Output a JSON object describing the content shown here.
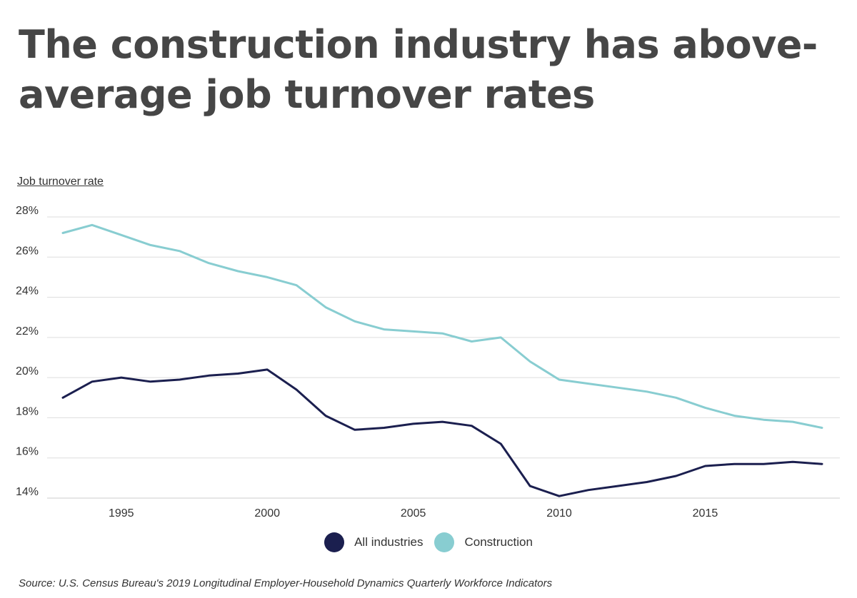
{
  "title": "The construction industry has above-average job turnover rates",
  "source": "Source:  U.S. Census Bureau's 2019 Longitudinal Employer-Household Dynamics Quarterly Workforce Indicators",
  "colors": {
    "all_industries": "#1b1f4f",
    "construction": "#88cdd1",
    "grid": "#dddddd"
  },
  "chart_data": {
    "type": "line",
    "ylabel": "Job turnover rate",
    "xlabel": "",
    "xlim": [
      1993,
      2019
    ],
    "ylim": [
      14,
      28
    ],
    "x_ticks": [
      1995,
      2000,
      2005,
      2010,
      2015
    ],
    "y_ticks": [
      {
        "value": 14,
        "label": "14%"
      },
      {
        "value": 16,
        "label": "16%"
      },
      {
        "value": 18,
        "label": "18%"
      },
      {
        "value": 20,
        "label": "20%"
      },
      {
        "value": 22,
        "label": "22%"
      },
      {
        "value": 24,
        "label": "24%"
      },
      {
        "value": 26,
        "label": "26%"
      },
      {
        "value": 28,
        "label": "28%"
      }
    ],
    "grid": true,
    "legend_position": "bottom-center",
    "x": [
      1993,
      1994,
      1995,
      1996,
      1997,
      1998,
      1999,
      2000,
      2001,
      2002,
      2003,
      2004,
      2005,
      2006,
      2007,
      2008,
      2009,
      2010,
      2011,
      2012,
      2013,
      2014,
      2015,
      2016,
      2017,
      2018,
      2019
    ],
    "series": [
      {
        "name": "All industries",
        "color": "#1b1f4f",
        "values": [
          19.0,
          19.8,
          20.0,
          19.8,
          19.9,
          20.1,
          20.2,
          20.4,
          19.4,
          18.1,
          17.4,
          17.5,
          17.7,
          17.8,
          17.6,
          16.7,
          14.6,
          14.1,
          14.4,
          14.6,
          14.8,
          15.1,
          15.6,
          15.7,
          15.7,
          15.8,
          15.7
        ]
      },
      {
        "name": "Construction",
        "color": "#88cdd1",
        "values": [
          27.2,
          27.6,
          27.1,
          26.6,
          26.3,
          25.7,
          25.3,
          25.0,
          24.6,
          23.5,
          22.8,
          22.4,
          22.3,
          22.2,
          21.8,
          22.0,
          20.8,
          19.9,
          19.7,
          19.5,
          19.3,
          19.0,
          18.5,
          18.1,
          17.9,
          17.8,
          17.5
        ]
      }
    ]
  }
}
